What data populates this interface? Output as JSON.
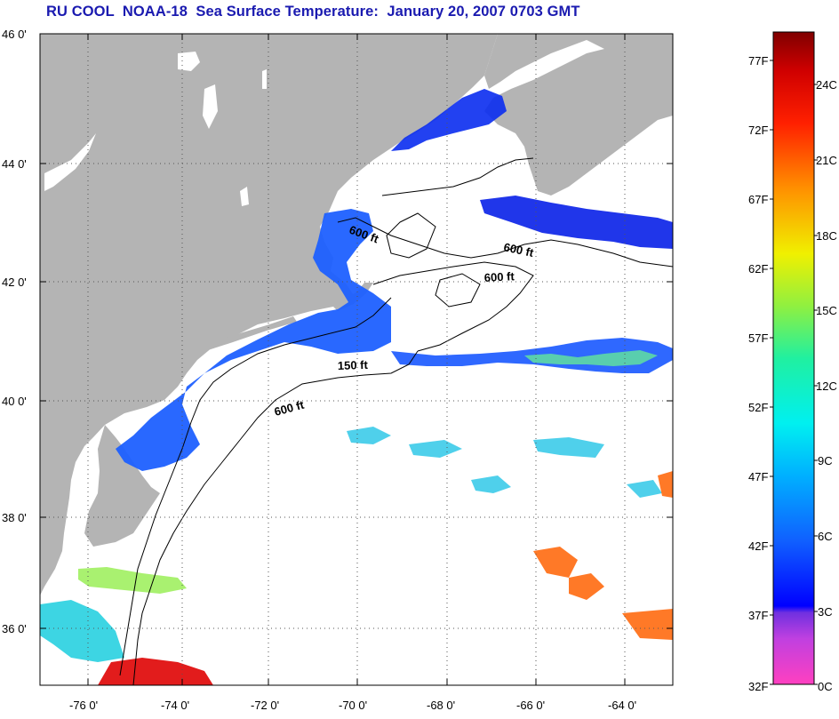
{
  "title": "RU COOL  NOAA-18  Sea Surface Temperature:  January 20, 2007 0703 GMT",
  "colors": {
    "title": "#1a1ab0",
    "land": "#b4b4b4",
    "grid": "#555555"
  },
  "axes": {
    "lat_labels": [
      "46 0'",
      "44 0'",
      "42 0'",
      "40 0'",
      "38 0'",
      "36 0'"
    ],
    "lon_labels": [
      "-76 0'",
      "-74 0'",
      "-72 0'",
      "-70 0'",
      "-68 0'",
      "-66 0'",
      "-64 0'"
    ]
  },
  "contour_labels": [
    "600 ft",
    "600 ft",
    "600 ft",
    "150 ft",
    "600 ft"
  ],
  "colorbar": {
    "f_labels": [
      "77F",
      "72F",
      "67F",
      "62F",
      "57F",
      "52F",
      "47F",
      "42F",
      "37F",
      "32F"
    ],
    "c_labels": [
      "24C",
      "21C",
      "18C",
      "15C",
      "12C",
      "9C",
      "6C",
      "3C",
      "0C"
    ]
  }
}
